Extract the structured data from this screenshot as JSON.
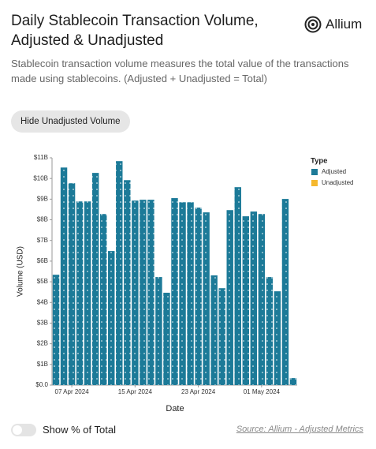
{
  "header": {
    "title": "Daily Stablecoin Transaction Volume, Adjusted & Unadjusted",
    "logo": "Allium",
    "description": "Stablecoin transaction volume measures the total value of the transactions made using stablecoins. (Adjusted + Unadjusted = Total)",
    "button": "Hide Unadjusted Volume"
  },
  "chart_data": {
    "type": "bar",
    "xlabel": "Date",
    "ylabel": "Volume (USD)",
    "categories": [
      null,
      null,
      "07 Apr 2024",
      null,
      null,
      null,
      null,
      null,
      null,
      null,
      "15 Apr 2024",
      null,
      null,
      null,
      null,
      null,
      null,
      null,
      "23 Apr 2024",
      null,
      null,
      null,
      null,
      null,
      null,
      null,
      "01 May 2024",
      null,
      null,
      null,
      null
    ],
    "series": [
      {
        "name": "Adjusted",
        "color": "#1c7a98",
        "values": [
          5.34,
          10.53,
          9.77,
          8.89,
          8.89,
          10.27,
          8.28,
          6.49,
          10.84,
          9.92,
          8.93,
          8.97,
          8.97,
          5.23,
          4.47,
          9.05,
          8.85,
          8.85,
          8.59,
          8.36,
          5.31,
          4.69,
          8.47,
          9.58,
          8.17,
          8.4,
          8.28,
          5.23,
          4.54,
          9.01,
          0.34
        ]
      }
    ],
    "legend_title": "Type",
    "legend": [
      {
        "name": "Adjusted",
        "color": "#1c7a98"
      },
      {
        "name": "Unadjusted",
        "color": "#f5b82e"
      }
    ],
    "ylim": [
      0,
      11
    ],
    "yticks": [
      {
        "value": 0,
        "label": "$0.0"
      },
      {
        "value": 1,
        "label": "$1B"
      },
      {
        "value": 2,
        "label": "$2B"
      },
      {
        "value": 3,
        "label": "$3B"
      },
      {
        "value": 4,
        "label": "$4B"
      },
      {
        "value": 5,
        "label": "$5B"
      },
      {
        "value": 6,
        "label": "$6B"
      },
      {
        "value": 7,
        "label": "$7B"
      },
      {
        "value": 8,
        "label": "$8B"
      },
      {
        "value": 9,
        "label": "$9B"
      },
      {
        "value": 10,
        "label": "$10B"
      },
      {
        "value": 11,
        "label": "$11B"
      }
    ]
  },
  "footer": {
    "toggle": "Show % of Total",
    "source": "Source: Allium - Adjusted Metrics"
  }
}
